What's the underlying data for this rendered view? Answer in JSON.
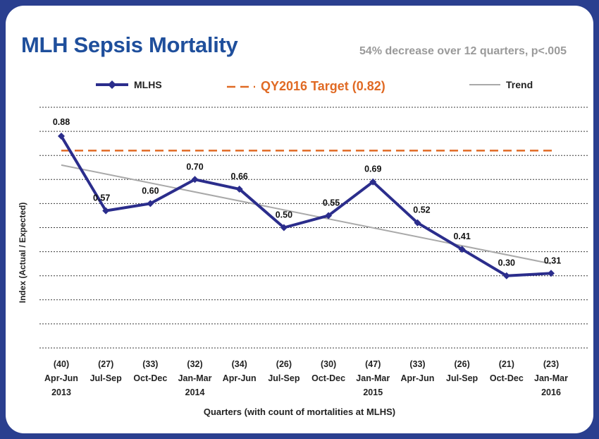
{
  "chart_data": {
    "type": "line",
    "title": "MLH Sepsis Mortality",
    "subtitle": "54% decrease over 12 quarters, p<.005",
    "xlabel": "Quarters (with count of mortalities at MLHS)",
    "ylabel": "Index (Actual / Expected)",
    "ylim": [
      0,
      1.0
    ],
    "grid": true,
    "legend_position": "top",
    "categories": [
      {
        "count": "(40)",
        "quarter": "Apr-Jun",
        "year": "2013"
      },
      {
        "count": "(27)",
        "quarter": "Jul-Sep",
        "year": ""
      },
      {
        "count": "(33)",
        "quarter": "Oct-Dec",
        "year": ""
      },
      {
        "count": "(32)",
        "quarter": "Jan-Mar",
        "year": "2014"
      },
      {
        "count": "(34)",
        "quarter": "Apr-Jun",
        "year": ""
      },
      {
        "count": "(26)",
        "quarter": "Jul-Sep",
        "year": ""
      },
      {
        "count": "(30)",
        "quarter": "Oct-Dec",
        "year": ""
      },
      {
        "count": "(47)",
        "quarter": "Jan-Mar",
        "year": "2015"
      },
      {
        "count": "(33)",
        "quarter": "Apr-Jun",
        "year": ""
      },
      {
        "count": "(26)",
        "quarter": "Jul-Sep",
        "year": ""
      },
      {
        "count": "(21)",
        "quarter": "Oct-Dec",
        "year": ""
      },
      {
        "count": "(23)",
        "quarter": "Jan-Mar",
        "year": "2016"
      }
    ],
    "series": [
      {
        "name": "MLHS",
        "color": "#2b2d8c",
        "values": [
          0.88,
          0.57,
          0.6,
          0.7,
          0.66,
          0.5,
          0.55,
          0.69,
          0.52,
          0.41,
          0.3,
          0.31
        ],
        "labels": [
          "0.88",
          "0.57",
          "0.60",
          "0.70",
          "0.66",
          "0.50",
          "0.55",
          "0.69",
          "0.52",
          "0.41",
          "0.30",
          "0.31"
        ]
      }
    ],
    "target": {
      "name": "QY2016 Target (0.82)",
      "value": 0.82,
      "color": "#e06a24"
    },
    "trend": {
      "name": "Trend",
      "start": 0.76,
      "end": 0.35,
      "color": "#a9a9a9"
    }
  }
}
